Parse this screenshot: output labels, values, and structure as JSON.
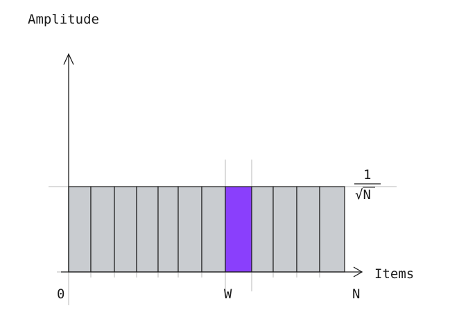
{
  "diagram": {
    "y_axis_label": "Amplitude",
    "x_axis_label": "Items",
    "tick_labels": {
      "origin": "0",
      "marked": "W",
      "end": "N"
    },
    "amplitude_label": {
      "numerator": "1",
      "denominator": "√N"
    },
    "bars": {
      "count": 12,
      "marked_index": 7,
      "uniform_amplitude": "1/√N"
    },
    "colors": {
      "bar_fill": "#c9ccd0",
      "marked_fill": "#8a3ffc",
      "stroke": "#1a1a1a",
      "guide": "#b8b8b8"
    }
  }
}
